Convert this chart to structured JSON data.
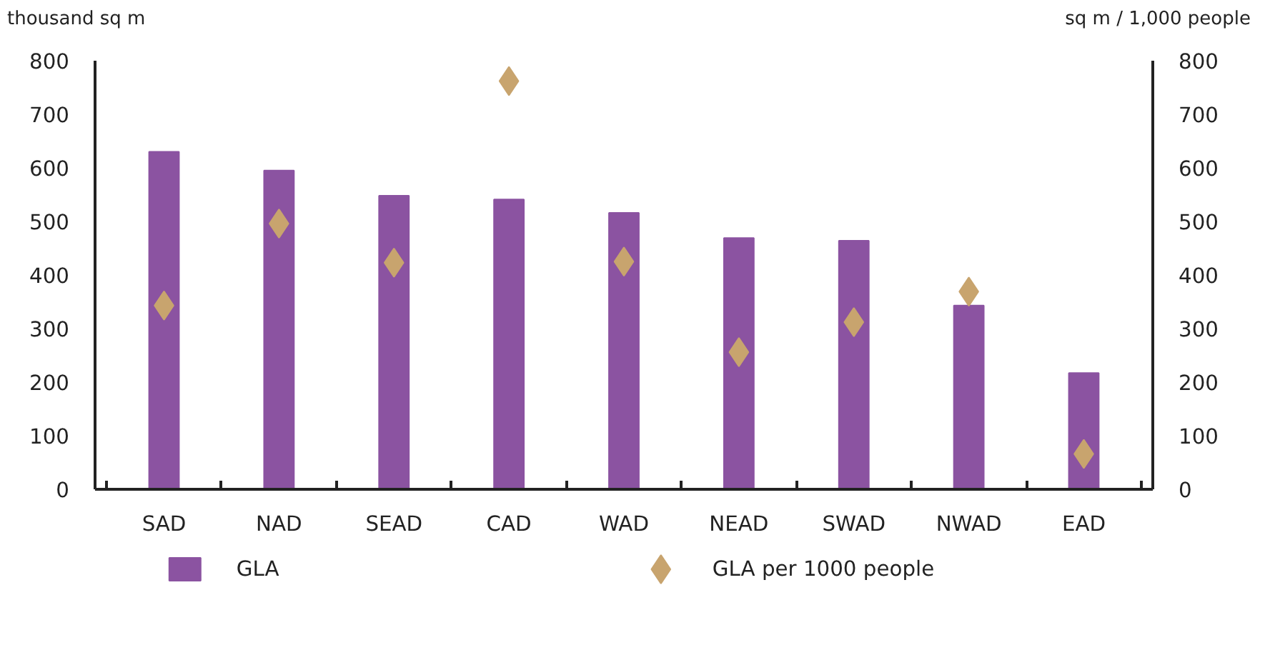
{
  "chart_data": {
    "type": "bar",
    "categories": [
      "SAD",
      "NAD",
      "SEAD",
      "CAD",
      "WAD",
      "NEAD",
      "SWAD",
      "NWAD",
      "EAD"
    ],
    "ylabel": "thousand sq m",
    "y2label": "sq m / 1,000 people",
    "series": [
      {
        "name": "GLA",
        "color": "#8b53a1",
        "values": [
          630,
          595,
          548,
          541,
          516,
          469,
          464,
          343,
          217
        ]
      },
      {
        "name": "GLA per 1000 people",
        "type": "scatter",
        "axis": "y2",
        "marker": "diamond",
        "color": "#c8a46e",
        "values": [
          343,
          496,
          423,
          762,
          425,
          256,
          312,
          369,
          66
        ]
      }
    ],
    "ylim": [
      0,
      800
    ],
    "yticks": [
      0,
      100,
      200,
      300,
      400,
      500,
      600,
      700,
      800
    ],
    "y2lim": [
      0,
      800
    ],
    "y2ticks": [
      0,
      100,
      200,
      300,
      400,
      500,
      600,
      700,
      800
    ],
    "grid": false,
    "legend": "bottom"
  }
}
